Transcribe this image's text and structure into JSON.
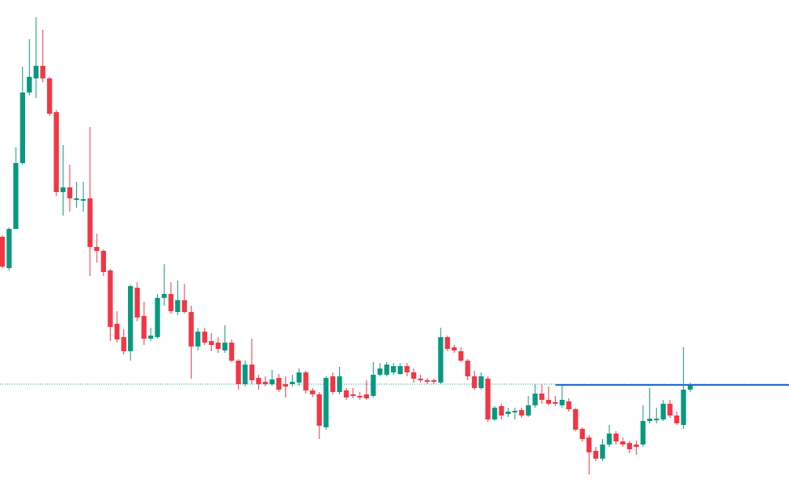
{
  "chart_data": {
    "type": "candlestick",
    "open": [
      323,
      283,
      333,
      417,
      507,
      525,
      541,
      525,
      482,
      380,
      386,
      370,
      369,
      372,
      310,
      305,
      280,
      212,
      195,
      177,
      258,
      222,
      193,
      195,
      245,
      250,
      227,
      242,
      227,
      183,
      202,
      190,
      188,
      178,
      188,
      165,
      135,
      160,
      143,
      138,
      135,
      143,
      135,
      135,
      137,
      150,
      127,
      122,
      80,
      145,
      125,
      127,
      122,
      120,
      122,
      120,
      147,
      147,
      150,
      148,
      158,
      150,
      142,
      140,
      140,
      137,
      195,
      182,
      177,
      165,
      145,
      130,
      142,
      90,
      107,
      97,
      99,
      102,
      95,
      108,
      123,
      115,
      112,
      108,
      113,
      103,
      78,
      67,
      50,
      40,
      58,
      72,
      62,
      60,
      58,
      58,
      88,
      89,
      90,
      110,
      95,
      83,
      128
    ],
    "high": [
      325,
      335,
      437,
      540,
      575,
      603,
      587,
      527,
      485,
      440,
      415,
      393,
      393,
      463,
      327,
      307,
      282,
      228,
      205,
      262,
      265,
      240,
      207,
      250,
      288,
      265,
      267,
      263,
      235,
      207,
      207,
      200,
      195,
      210,
      192,
      167,
      165,
      193,
      147,
      145,
      153,
      148,
      145,
      147,
      155,
      152,
      130,
      125,
      145,
      150,
      157,
      130,
      130,
      125,
      140,
      163,
      162,
      163,
      162,
      162,
      162,
      155,
      147,
      143,
      142,
      207,
      197,
      185,
      182,
      167,
      152,
      150,
      145,
      107,
      110,
      105,
      105,
      105,
      120,
      135,
      135,
      132,
      120,
      135,
      117,
      105,
      80,
      70,
      55,
      65,
      83,
      75,
      67,
      63,
      63,
      108,
      130,
      105,
      115,
      115,
      100,
      182,
      137
    ],
    "low": [
      283,
      280,
      333,
      415,
      503,
      500,
      520,
      477,
      375,
      350,
      355,
      360,
      355,
      273,
      290,
      273,
      190,
      188,
      173,
      165,
      215,
      185,
      190,
      193,
      235,
      225,
      223,
      225,
      142,
      178,
      185,
      177,
      175,
      175,
      163,
      128,
      132,
      135,
      128,
      132,
      133,
      125,
      118,
      132,
      133,
      123,
      118,
      65,
      77,
      122,
      122,
      115,
      117,
      115,
      115,
      118,
      145,
      145,
      147,
      147,
      145,
      137,
      137,
      135,
      135,
      135,
      177,
      175,
      163,
      140,
      128,
      128,
      87,
      88,
      90,
      93,
      90,
      92,
      93,
      105,
      110,
      108,
      107,
      105,
      100,
      75,
      62,
      20,
      37,
      37,
      55,
      58,
      55,
      47,
      45,
      55,
      85,
      85,
      88,
      92,
      83,
      78,
      125
    ],
    "close": [
      285,
      333,
      417,
      507,
      527,
      541,
      525,
      480,
      380,
      386,
      372,
      372,
      371,
      310,
      305,
      278,
      208,
      192,
      177,
      260,
      220,
      193,
      197,
      245,
      250,
      228,
      242,
      227,
      183,
      202,
      188,
      185,
      180,
      188,
      165,
      135,
      160,
      140,
      135,
      135,
      141,
      128,
      132,
      138,
      150,
      127,
      122,
      82,
      143,
      125,
      145,
      118,
      120,
      118,
      117,
      147,
      155,
      160,
      158,
      158,
      150,
      142,
      140,
      138,
      138,
      195,
      180,
      178,
      165,
      145,
      130,
      145,
      90,
      105,
      95,
      100,
      101,
      95,
      108,
      123,
      115,
      110,
      110,
      115,
      103,
      77,
      65,
      48,
      40,
      58,
      72,
      62,
      58,
      52,
      55,
      88,
      91,
      91,
      110,
      95,
      85,
      128,
      133
    ],
    "up_color": "#089981",
    "down_color": "#f23645",
    "ylim": [
      0,
      625
    ],
    "price_line": {
      "value": 135,
      "color": "#089981"
    },
    "horizontal_line": {
      "value": 134,
      "color": "#1e66d0",
      "start_index": 82
    }
  }
}
